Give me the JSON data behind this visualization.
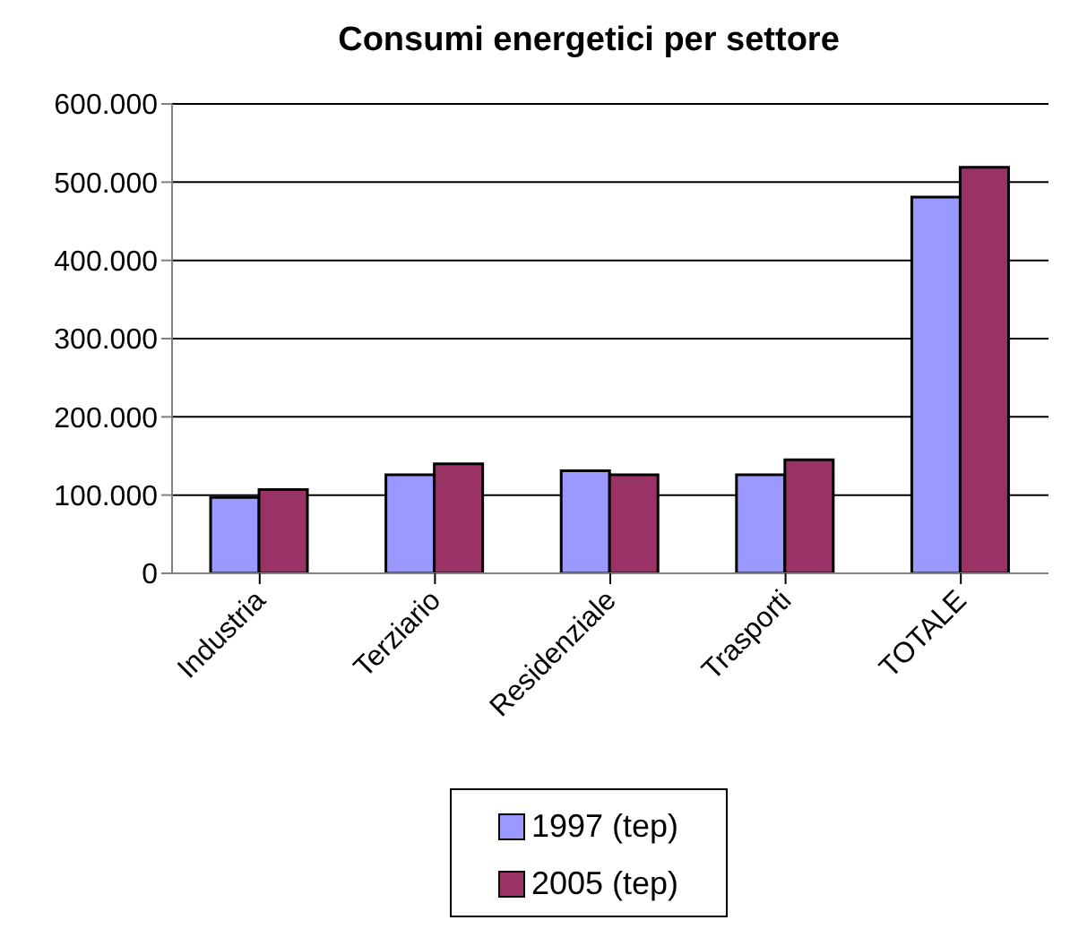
{
  "chart_data": {
    "type": "bar",
    "title": "Consumi energetici per settore",
    "categories": [
      "Industria",
      "Terziario",
      "Residenziale",
      "Trasporti",
      "TOTALE"
    ],
    "series": [
      {
        "name": "1997 (tep)",
        "color": "#9999ff",
        "values": [
          97000,
          126000,
          131000,
          126000,
          481000
        ]
      },
      {
        "name": "2005 (tep)",
        "color": "#993366",
        "values": [
          107000,
          140000,
          126000,
          145000,
          519000
        ]
      }
    ],
    "ylim": [
      0,
      600000
    ],
    "yticks": [
      {
        "value": 0,
        "label": "0"
      },
      {
        "value": 100000,
        "label": "100.000"
      },
      {
        "value": 200000,
        "label": "200.000"
      },
      {
        "value": 300000,
        "label": "300.000"
      },
      {
        "value": 400000,
        "label": "400.000"
      },
      {
        "value": 500000,
        "label": "500.000"
      },
      {
        "value": 600000,
        "label": "600.000"
      }
    ],
    "grid": "y",
    "legend": "bottom"
  }
}
